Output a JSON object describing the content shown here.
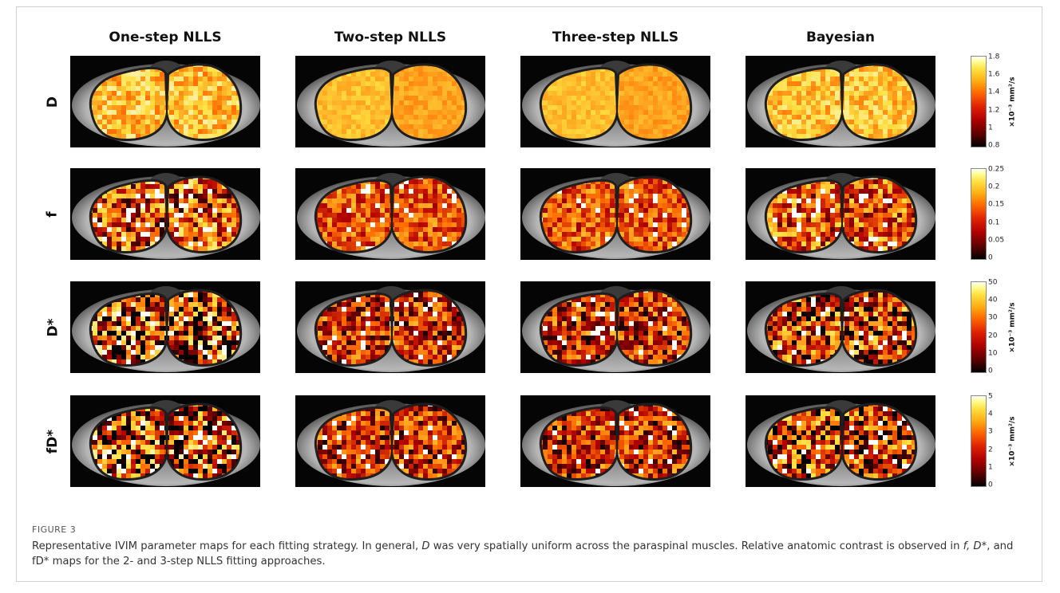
{
  "figure": {
    "column_titles": [
      "One-step NLLS",
      "Two-step NLLS",
      "Three-step NLLS",
      "Bayesian"
    ],
    "rows": [
      {
        "label": "D",
        "colorbar_ticks": [
          "1.8",
          "1.6",
          "1.4",
          "1.2",
          "1",
          "0.8"
        ],
        "colorbar_unit": "×10⁻³ mm²/s"
      },
      {
        "label": "f",
        "colorbar_ticks": [
          "0.25",
          "0.2",
          "0.15",
          "0.1",
          "0.05",
          "0"
        ],
        "colorbar_unit": ""
      },
      {
        "label": "D*",
        "colorbar_ticks": [
          "50",
          "40",
          "30",
          "20",
          "10",
          "0"
        ],
        "colorbar_unit": "×10⁻³ mm²/s"
      },
      {
        "label": "fD*",
        "colorbar_ticks": [
          "5",
          "4",
          "3",
          "2",
          "1",
          "0"
        ],
        "colorbar_unit": "×10⁻³ mm²/s"
      }
    ],
    "colormap": [
      "#000000",
      "#b10000",
      "#ff6a00",
      "#ffe040",
      "#ffffff"
    ],
    "label": "FIGURE 3",
    "caption": {
      "part1": "Representative IVIM parameter maps for each fitting strategy. In general, ",
      "D": "D",
      "part2": " was very spatially uniform across the paraspinal muscles. Relative anatomic contrast is observed in ",
      "f": "f, D*",
      "part3": ", and fD* maps for the 2- and 3-step NLLS fitting approaches."
    }
  }
}
